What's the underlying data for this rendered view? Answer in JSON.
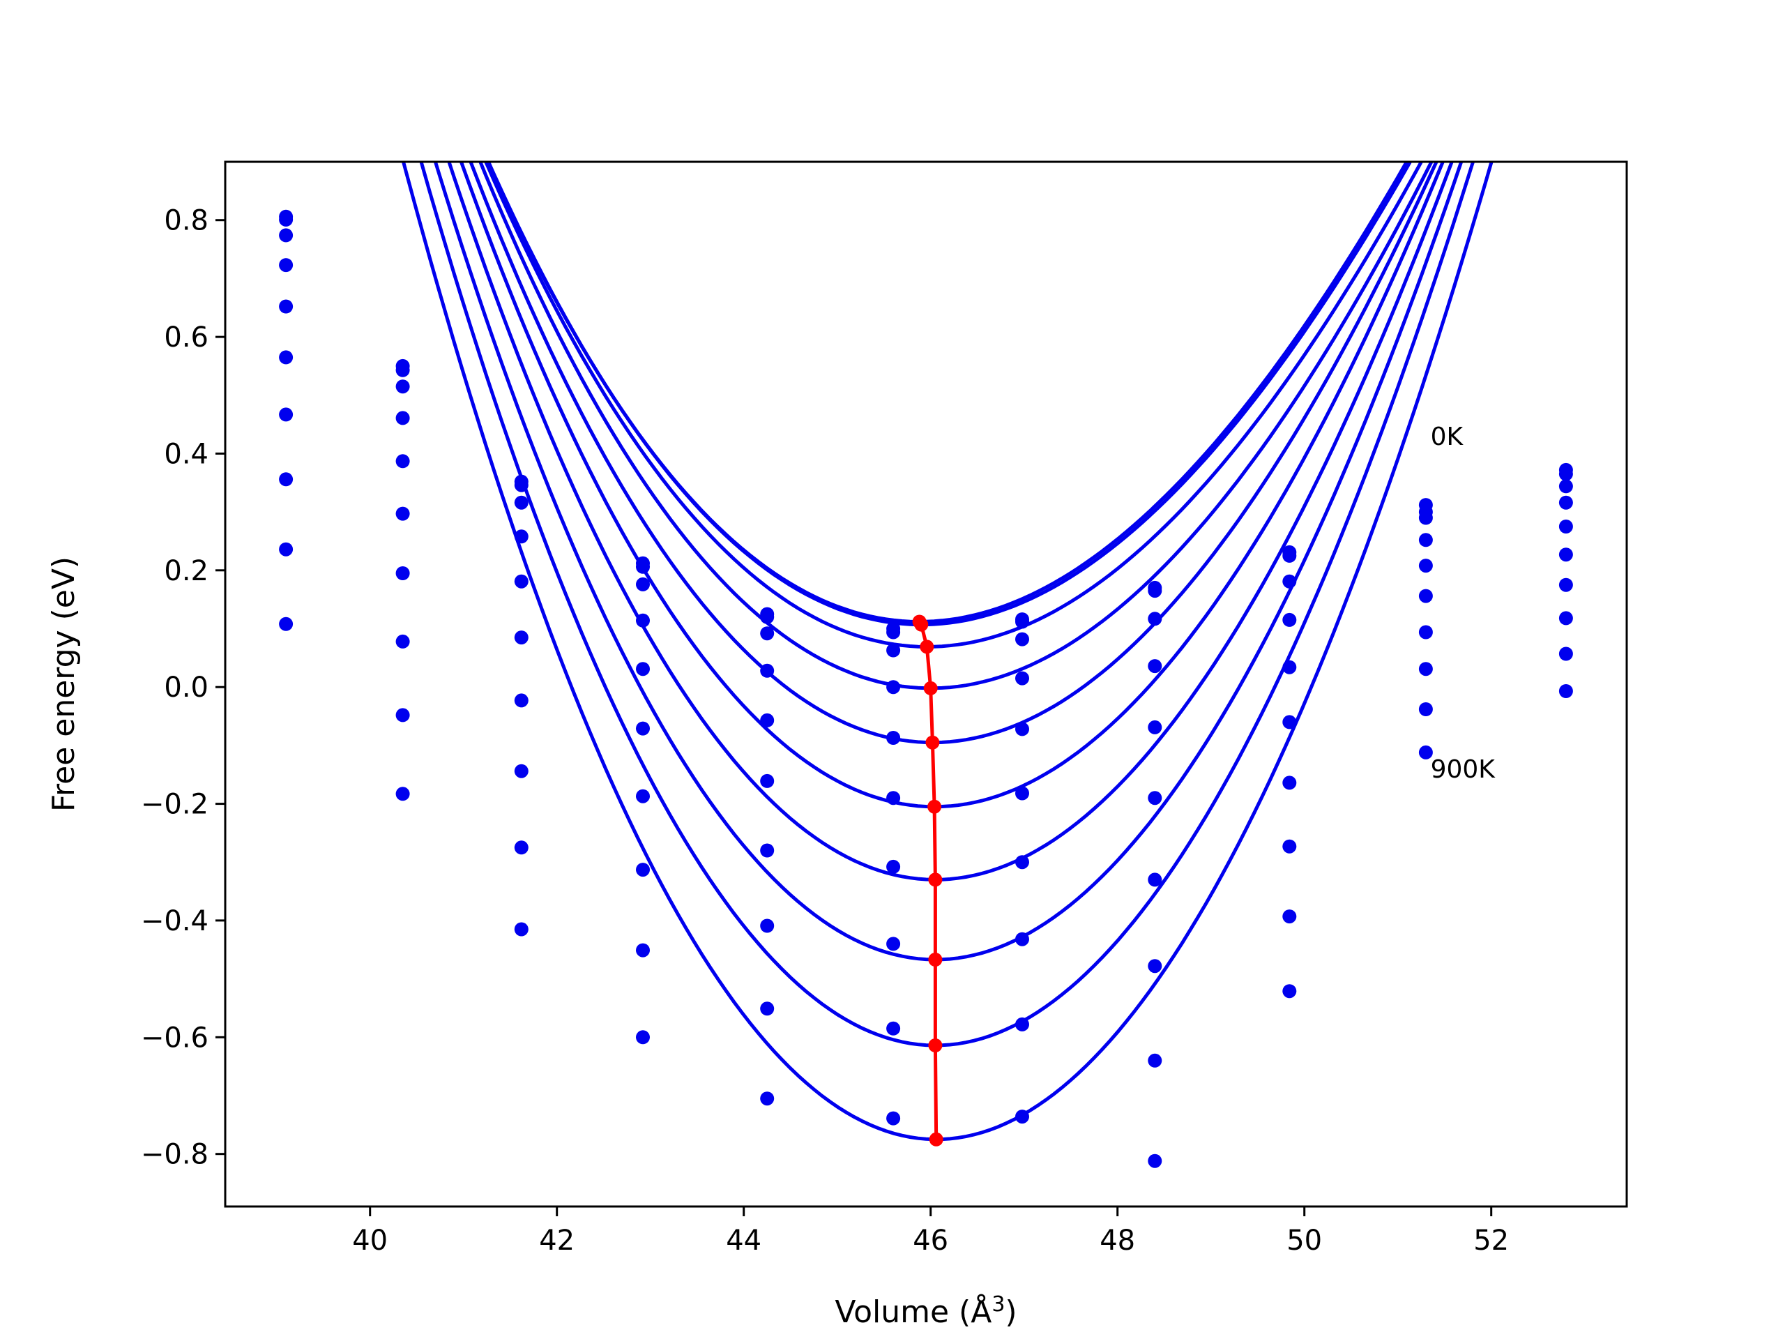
{
  "chart_data": {
    "type": "line",
    "xlabel": "Volume (Å",
    "xlabel_sup": "3",
    "xlabel_close": ")",
    "ylabel": "Free energy (eV)",
    "xlim": [
      38.45,
      53.45
    ],
    "ylim": [
      -0.89,
      0.9
    ],
    "xticks": [
      40,
      42,
      44,
      46,
      48,
      50,
      52
    ],
    "yticks": [
      0.8,
      0.6,
      0.4,
      0.2,
      0.0,
      -0.2,
      -0.4,
      -0.6,
      -0.8
    ],
    "xtick_labels": [
      "40",
      "42",
      "44",
      "46",
      "48",
      "50",
      "52"
    ],
    "ytick_labels": [
      "0.8",
      "0.6",
      "0.4",
      "0.2",
      "0.0",
      "−0.2",
      "−0.4",
      "−0.6",
      "−0.8"
    ],
    "grid": false,
    "legend": "none",
    "colors": {
      "curves": "#0000ee",
      "minimum_path": "#ff0000"
    },
    "annotations": [
      {
        "text": "0K",
        "x": 51.35,
        "y": 0.415
      },
      {
        "text": "900K",
        "x": 51.35,
        "y": -0.155
      }
    ],
    "volumes": [
      39.1,
      40.35,
      41.62,
      42.92,
      44.25,
      45.6,
      46.98,
      48.4,
      49.84,
      51.3,
      52.8
    ],
    "series": [
      {
        "fit": {
          "v0": 45.88,
          "e0": 0.112,
          "k": 0.0332,
          "c": -0.00081
        },
        "points": [
          0.806,
          0.55,
          0.352,
          0.212,
          0.125,
          0.094,
          0.116,
          0.17,
          0.231,
          0.312,
          0.372
        ]
      },
      {
        "fit": {
          "v0": 45.9,
          "e0": 0.107,
          "k": 0.0332,
          "c": -0.00081
        },
        "points": [
          0.801,
          0.543,
          0.346,
          0.206,
          0.12,
          0.1,
          0.112,
          0.165,
          0.225,
          0.3,
          0.365
        ]
      },
      {
        "fit": {
          "v0": 45.96,
          "e0": 0.069,
          "k": 0.0337,
          "c": -0.00076
        },
        "points": [
          0.774,
          0.515,
          0.316,
          0.176,
          0.092,
          0.063,
          0.082,
          0.117,
          0.181,
          0.29,
          0.344
        ]
      },
      {
        "fit": {
          "v0": 46.0,
          "e0": -0.002,
          "k": 0.0353,
          "c": -0.00073
        },
        "points": [
          0.723,
          0.461,
          0.258,
          0.114,
          0.028,
          0.0,
          0.015,
          0.036,
          0.115,
          0.252,
          0.316
        ]
      },
      {
        "fit": {
          "v0": 46.02,
          "e0": -0.095,
          "k": 0.0376,
          "c": -0.00063
        },
        "points": [
          0.652,
          0.387,
          0.181,
          0.031,
          -0.057,
          -0.087,
          -0.072,
          -0.069,
          0.034,
          0.208,
          0.275
        ]
      },
      {
        "fit": {
          "v0": 46.04,
          "e0": -0.205,
          "k": 0.0403,
          "c": -0.00055
        },
        "points": [
          0.565,
          0.297,
          0.085,
          -0.071,
          -0.161,
          -0.19,
          -0.182,
          -0.19,
          -0.06,
          0.156,
          0.227
        ]
      },
      {
        "fit": {
          "v0": 46.05,
          "e0": -0.33,
          "k": 0.0429,
          "c": -0.00048
        },
        "points": [
          0.467,
          0.195,
          -0.023,
          -0.187,
          -0.28,
          -0.308,
          -0.3,
          -0.33,
          -0.164,
          0.094,
          0.175
        ]
      },
      {
        "fit": {
          "v0": 46.05,
          "e0": -0.467,
          "k": 0.0455,
          "c": -0.00042
        },
        "points": [
          0.356,
          0.078,
          -0.144,
          -0.313,
          -0.409,
          -0.44,
          -0.432,
          -0.478,
          -0.273,
          0.031,
          0.118
        ]
      },
      {
        "fit": {
          "v0": 46.05,
          "e0": -0.614,
          "k": 0.0479,
          "c": -0.00038
        },
        "points": [
          0.236,
          -0.048,
          -0.275,
          -0.451,
          -0.551,
          -0.585,
          -0.578,
          -0.64,
          -0.393,
          -0.038,
          0.057
        ]
      },
      {
        "fit": {
          "v0": 46.06,
          "e0": -0.775,
          "k": 0.0495,
          "c": -0.00035
        },
        "points": [
          0.108,
          -0.183,
          -0.415,
          -0.6,
          -0.705,
          -0.739,
          -0.736,
          -0.812,
          -0.521,
          -0.112,
          -0.007
        ]
      }
    ],
    "minimum_path": {
      "x": [
        45.88,
        45.9,
        45.96,
        46.0,
        46.02,
        46.04,
        46.05,
        46.05,
        46.05,
        46.06
      ],
      "y": [
        0.112,
        0.107,
        0.069,
        -0.002,
        -0.095,
        -0.205,
        -0.33,
        -0.467,
        -0.614,
        -0.775
      ]
    }
  }
}
